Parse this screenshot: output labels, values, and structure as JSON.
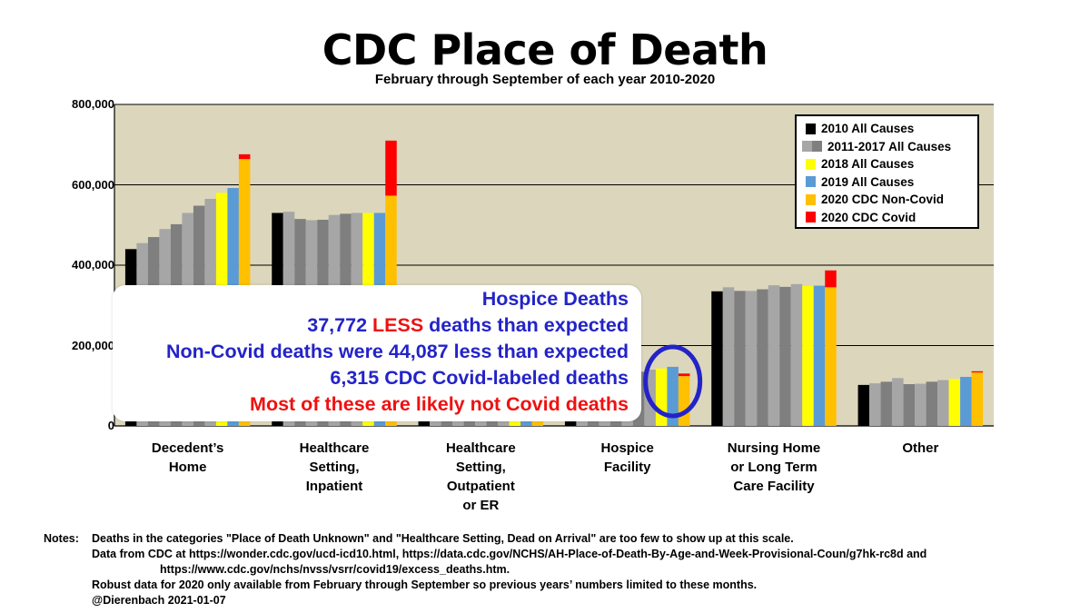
{
  "chart_data": {
    "type": "bar",
    "title": "CDC Place of Death",
    "subtitle": "February through September of each year 2010-2020",
    "ylim": [
      0,
      800000
    ],
    "yticks": [
      0,
      200000,
      400000,
      600000,
      800000
    ],
    "ytick_labels": [
      "0",
      "200,000",
      "400,000",
      "600,000",
      "800,000"
    ],
    "grid": true,
    "categories": [
      "Decedent’s Home",
      "Healthcare Setting, Inpatient",
      "Healthcare Setting, Outpatient or ER",
      "Hospice Facility",
      "Nursing Home or Long Term Care Facility",
      "Other"
    ],
    "category_label_lines": [
      [
        "Decedent’s",
        "Home"
      ],
      [
        "Healthcare",
        "Setting,",
        "Inpatient"
      ],
      [
        "Healthcare",
        "Setting,",
        "Outpatient",
        "or ER"
      ],
      [
        "Hospice",
        "Facility"
      ],
      [
        "Nursing Home",
        "or Long Term",
        "Care Facility"
      ],
      [
        "Other"
      ]
    ],
    "years": [
      "2010",
      "2011",
      "2012",
      "2013",
      "2014",
      "2015",
      "2016",
      "2017",
      "2018",
      "2019",
      "2020"
    ],
    "series_values": [
      [
        440000,
        455000,
        470000,
        490000,
        502000,
        530000,
        548000,
        565000,
        580000,
        592000,
        664000
      ],
      [
        530000,
        533000,
        515000,
        512000,
        513000,
        525000,
        528000,
        530000,
        530000,
        530000,
        573000
      ],
      [
        85000,
        84000,
        84000,
        84000,
        84000,
        84000,
        84000,
        84000,
        84000,
        84000,
        84000
      ],
      [
        100000,
        105000,
        112000,
        117000,
        123000,
        129000,
        135000,
        140000,
        143000,
        147000,
        124000
      ],
      [
        335000,
        345000,
        336000,
        336000,
        340000,
        350000,
        346000,
        353000,
        348000,
        349000,
        345000
      ],
      [
        102000,
        106000,
        110000,
        119000,
        104000,
        105000,
        110000,
        114000,
        117000,
        122000,
        133000
      ]
    ],
    "covid_2020": [
      12000,
      137000,
      0,
      6315,
      42000,
      3000
    ],
    "legend": [
      {
        "label": "2010 All Causes",
        "colors": [
          "#000000"
        ]
      },
      {
        "label": "2011-2017 All Causes",
        "colors": [
          "#a6a6a6",
          "#7f7f7f"
        ]
      },
      {
        "label": "2018 All Causes",
        "colors": [
          "#ffff00"
        ]
      },
      {
        "label": "2019 All Causes",
        "colors": [
          "#5b9bd5"
        ]
      },
      {
        "label": "2020 CDC Non-Covid",
        "colors": [
          "#ffc000"
        ]
      },
      {
        "label": "2020 CDC Covid",
        "colors": [
          "#ff0000"
        ]
      }
    ],
    "legend_position": "top-right"
  },
  "colors": {
    "plot_background": "#dcd6bc",
    "y2010": "#000000",
    "gray_light": "#a6a6a6",
    "gray_dark": "#7f7f7f",
    "y2018": "#ffff00",
    "y2019": "#5b9bd5",
    "y2020_non_covid": "#ffc000",
    "y2020_covid": "#ff0000",
    "annotation_blue": "#2323c8",
    "annotation_red": "#ee1111"
  },
  "callout": {
    "line1": "Hospice Deaths",
    "line2_number": "37,772",
    "line2_less": "LESS",
    "line2_rest": "deaths than expected",
    "line3": "Non-Covid deaths were 44,087 less than expected",
    "line4": "6,315 CDC Covid-labeled deaths",
    "line5": "Most of these are likely not Covid deaths"
  },
  "notes": {
    "label": "Notes:",
    "lines": [
      "Deaths in the categories \"Place of Death Unknown\" and \"Healthcare Setting, Dead on Arrival\" are too few to show up at this scale.",
      "Data from CDC at https://wonder.cdc.gov/ucd-icd10.html, https://data.cdc.gov/NCHS/AH-Place-of-Death-By-Age-and-Week-Provisional-Coun/g7hk-rc8d and",
      "https://www.cdc.gov/nchs/nvss/vsrr/covid19/excess_deaths.htm.",
      "Robust data for 2020 only available from February through September so previous years’ numbers limited to these months.",
      "@Dierenbach 2021-01-07"
    ]
  }
}
